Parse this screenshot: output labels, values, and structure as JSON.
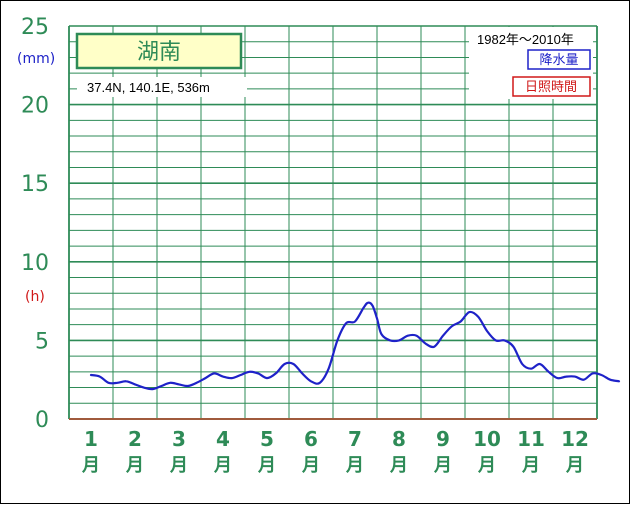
{
  "station": {
    "name": "湖南",
    "coords": "37.4N,  140.1E,  536m",
    "period": "1982年〜2010年"
  },
  "legend": {
    "precipitation": "降水量",
    "sunshine": "日照時間"
  },
  "colors": {
    "grid": "#2e8b57",
    "precipitation": "#1e22c8",
    "sunshine": "#d01818",
    "station_box_fill": "#ffffc8"
  },
  "chart_data": {
    "type": "line",
    "xlabel": "",
    "ylabel": "",
    "ylim": [
      0,
      25
    ],
    "y_ticks": [
      "0",
      "5",
      "10",
      "15",
      "20",
      "25"
    ],
    "y_units": {
      "left_top": "(mm)",
      "left_mid": "(h)"
    },
    "x_ticks": [
      {
        "num": "1",
        "suffix": "月"
      },
      {
        "num": "2",
        "suffix": "月"
      },
      {
        "num": "3",
        "suffix": "月"
      },
      {
        "num": "4",
        "suffix": "月"
      },
      {
        "num": "5",
        "suffix": "月"
      },
      {
        "num": "6",
        "suffix": "月"
      },
      {
        "num": "7",
        "suffix": "月"
      },
      {
        "num": "8",
        "suffix": "月"
      },
      {
        "num": "9",
        "suffix": "月"
      },
      {
        "num": "10",
        "suffix": "月"
      },
      {
        "num": "11",
        "suffix": "月"
      },
      {
        "num": "12",
        "suffix": "月"
      }
    ],
    "grid": true,
    "series": [
      {
        "name": "降水量",
        "color": "#1e22c8",
        "x": [
          0.5,
          0.7,
          0.9,
          1.1,
          1.3,
          1.5,
          1.7,
          1.9,
          2.1,
          2.3,
          2.5,
          2.7,
          2.9,
          3.1,
          3.3,
          3.5,
          3.7,
          3.9,
          4.1,
          4.3,
          4.5,
          4.7,
          4.9,
          5.1,
          5.3,
          5.5,
          5.7,
          5.9,
          6.1,
          6.3,
          6.5,
          6.7,
          6.8,
          6.9,
          7.0,
          7.1,
          7.3,
          7.5,
          7.7,
          7.9,
          8.1,
          8.3,
          8.5,
          8.7,
          8.9,
          9.1,
          9.3,
          9.5,
          9.7,
          9.9,
          10.1,
          10.3,
          10.5,
          10.7,
          10.9,
          11.1,
          11.3,
          11.5,
          11.7,
          11.9,
          12.1,
          12.3,
          12.5
        ],
        "values": [
          2.8,
          2.7,
          2.3,
          2.3,
          2.4,
          2.2,
          2.0,
          1.9,
          2.1,
          2.3,
          2.2,
          2.1,
          2.3,
          2.6,
          2.9,
          2.7,
          2.6,
          2.8,
          3.0,
          2.9,
          2.6,
          2.9,
          3.5,
          3.5,
          2.9,
          2.4,
          2.3,
          3.2,
          5.0,
          6.1,
          6.2,
          7.1,
          7.4,
          7.2,
          6.4,
          5.4,
          5.0,
          5.0,
          5.3,
          5.3,
          4.8,
          4.6,
          5.3,
          5.9,
          6.2,
          6.8,
          6.5,
          5.6,
          5.0,
          5.0,
          4.6,
          3.5,
          3.2,
          3.5,
          3.0,
          2.6,
          2.7,
          2.7,
          2.5,
          2.9,
          2.8,
          2.5,
          2.4
        ]
      }
    ]
  }
}
